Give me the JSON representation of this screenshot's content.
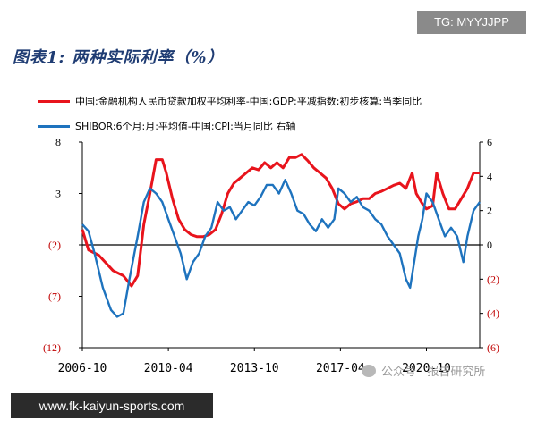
{
  "tag": "TG: MYYJJPP",
  "figure_title": "图表1: 两种实际利率（%）",
  "footer_text": "www.fk-kaiyun-sports.com",
  "watermark": "公众号 · 报告研究所",
  "colors": {
    "series_red": "#e8141c",
    "series_blue": "#1e73be",
    "axis": "#000000",
    "left_neg": "#c00000"
  },
  "chart_data": {
    "type": "line",
    "x_ticks": [
      "2006-10",
      "2010-04",
      "2013-10",
      "2017-04",
      "2020-10"
    ],
    "xlim": [
      "2006-10",
      "2022-12"
    ],
    "left_axis": {
      "ylim": [
        -12,
        8
      ],
      "ticks": [
        8,
        3,
        -2,
        -7,
        -12
      ],
      "tick_labels": [
        "8",
        "3",
        "(2)",
        "(7)",
        "(12)"
      ]
    },
    "right_axis": {
      "ylim": [
        -6,
        6
      ],
      "ticks": [
        6,
        4,
        2,
        0,
        -2,
        -4,
        -6
      ],
      "tick_labels": [
        "6",
        "4",
        "2",
        "0",
        "(2)",
        "(4)",
        "(6)"
      ]
    },
    "reference_line_right": 0,
    "series": [
      {
        "name": "中国:金融机构人民币贷款加权平均利率-中国:GDP:平减指数:初步核算:当季同比",
        "axis": "left",
        "points": [
          [
            "2006-10",
            -0.5
          ],
          [
            "2007-01",
            -2.5
          ],
          [
            "2007-06",
            -3
          ],
          [
            "2008-01",
            -4.5
          ],
          [
            "2008-06",
            -5
          ],
          [
            "2008-10",
            -6
          ],
          [
            "2009-01",
            -5
          ],
          [
            "2009-04",
            0
          ],
          [
            "2009-07",
            3
          ],
          [
            "2009-10",
            6.3
          ],
          [
            "2010-01",
            6.3
          ],
          [
            "2010-03",
            5
          ],
          [
            "2010-06",
            2.5
          ],
          [
            "2010-09",
            0.5
          ],
          [
            "2010-12",
            -0.5
          ],
          [
            "2011-03",
            -1
          ],
          [
            "2011-06",
            -1.2
          ],
          [
            "2011-09",
            -1.2
          ],
          [
            "2011-12",
            -1
          ],
          [
            "2012-03",
            -0.5
          ],
          [
            "2012-06",
            1
          ],
          [
            "2012-09",
            3
          ],
          [
            "2012-12",
            4
          ],
          [
            "2013-03",
            4.5
          ],
          [
            "2013-06",
            5
          ],
          [
            "2013-09",
            5.5
          ],
          [
            "2013-12",
            5.3
          ],
          [
            "2014-03",
            6
          ],
          [
            "2014-06",
            5.5
          ],
          [
            "2014-09",
            6
          ],
          [
            "2014-12",
            5.5
          ],
          [
            "2015-03",
            6.5
          ],
          [
            "2015-06",
            6.5
          ],
          [
            "2015-09",
            6.8
          ],
          [
            "2015-12",
            6.2
          ],
          [
            "2016-03",
            5.5
          ],
          [
            "2016-06",
            5
          ],
          [
            "2016-09",
            4.5
          ],
          [
            "2016-12",
            3.5
          ],
          [
            "2017-03",
            2
          ],
          [
            "2017-06",
            1.5
          ],
          [
            "2017-09",
            2
          ],
          [
            "2017-12",
            2.2
          ],
          [
            "2018-03",
            2.5
          ],
          [
            "2018-06",
            2.5
          ],
          [
            "2018-09",
            3
          ],
          [
            "2018-12",
            3.2
          ],
          [
            "2019-03",
            3.5
          ],
          [
            "2019-06",
            3.8
          ],
          [
            "2019-09",
            4
          ],
          [
            "2019-12",
            3.5
          ],
          [
            "2020-03",
            5
          ],
          [
            "2020-05",
            3
          ],
          [
            "2020-08",
            2
          ],
          [
            "2020-10",
            1.5
          ],
          [
            "2021-01",
            1.8
          ],
          [
            "2021-03",
            5
          ],
          [
            "2021-06",
            3
          ],
          [
            "2021-09",
            1.5
          ],
          [
            "2021-12",
            1.5
          ],
          [
            "2022-03",
            2.5
          ],
          [
            "2022-06",
            3.5
          ],
          [
            "2022-09",
            5
          ],
          [
            "2022-12",
            5
          ]
        ]
      },
      {
        "name": "SHIBOR:6个月:月:平均值-中国:CPI:当月同比 右轴",
        "axis": "right",
        "points": [
          [
            "2006-10",
            1.2
          ],
          [
            "2007-01",
            0.8
          ],
          [
            "2007-04",
            -0.5
          ],
          [
            "2007-08",
            -2.5
          ],
          [
            "2007-12",
            -3.8
          ],
          [
            "2008-03",
            -4.2
          ],
          [
            "2008-06",
            -4
          ],
          [
            "2008-09",
            -2
          ],
          [
            "2009-01",
            0.5
          ],
          [
            "2009-04",
            2.5
          ],
          [
            "2009-07",
            3.3
          ],
          [
            "2009-10",
            3
          ],
          [
            "2010-01",
            2.5
          ],
          [
            "2010-04",
            1.5
          ],
          [
            "2010-07",
            0.5
          ],
          [
            "2010-10",
            -0.5
          ],
          [
            "2011-01",
            -2
          ],
          [
            "2011-04",
            -1
          ],
          [
            "2011-07",
            -0.5
          ],
          [
            "2011-10",
            0.5
          ],
          [
            "2012-01",
            1
          ],
          [
            "2012-04",
            2.5
          ],
          [
            "2012-07",
            2
          ],
          [
            "2012-10",
            2.2
          ],
          [
            "2013-01",
            1.5
          ],
          [
            "2013-04",
            2
          ],
          [
            "2013-07",
            2.5
          ],
          [
            "2013-10",
            2.3
          ],
          [
            "2014-01",
            2.8
          ],
          [
            "2014-04",
            3.5
          ],
          [
            "2014-07",
            3.5
          ],
          [
            "2014-10",
            3
          ],
          [
            "2015-01",
            3.8
          ],
          [
            "2015-04",
            3
          ],
          [
            "2015-07",
            2
          ],
          [
            "2015-10",
            1.8
          ],
          [
            "2016-01",
            1.2
          ],
          [
            "2016-04",
            0.8
          ],
          [
            "2016-07",
            1.5
          ],
          [
            "2016-10",
            1
          ],
          [
            "2017-01",
            1.5
          ],
          [
            "2017-03",
            3.3
          ],
          [
            "2017-06",
            3
          ],
          [
            "2017-09",
            2.5
          ],
          [
            "2017-12",
            2.8
          ],
          [
            "2018-03",
            2.2
          ],
          [
            "2018-06",
            2
          ],
          [
            "2018-09",
            1.5
          ],
          [
            "2018-12",
            1.2
          ],
          [
            "2019-03",
            0.5
          ],
          [
            "2019-06",
            0
          ],
          [
            "2019-09",
            -0.5
          ],
          [
            "2019-12",
            -2
          ],
          [
            "2020-02",
            -2.5
          ],
          [
            "2020-04",
            -1
          ],
          [
            "2020-06",
            0.5
          ],
          [
            "2020-08",
            1.5
          ],
          [
            "2020-10",
            3
          ],
          [
            "2021-01",
            2.5
          ],
          [
            "2021-04",
            1.5
          ],
          [
            "2021-07",
            0.5
          ],
          [
            "2021-10",
            1
          ],
          [
            "2022-01",
            0.5
          ],
          [
            "2022-04",
            -1
          ],
          [
            "2022-06",
            0.5
          ],
          [
            "2022-09",
            2
          ],
          [
            "2022-12",
            2.5
          ]
        ]
      }
    ]
  }
}
